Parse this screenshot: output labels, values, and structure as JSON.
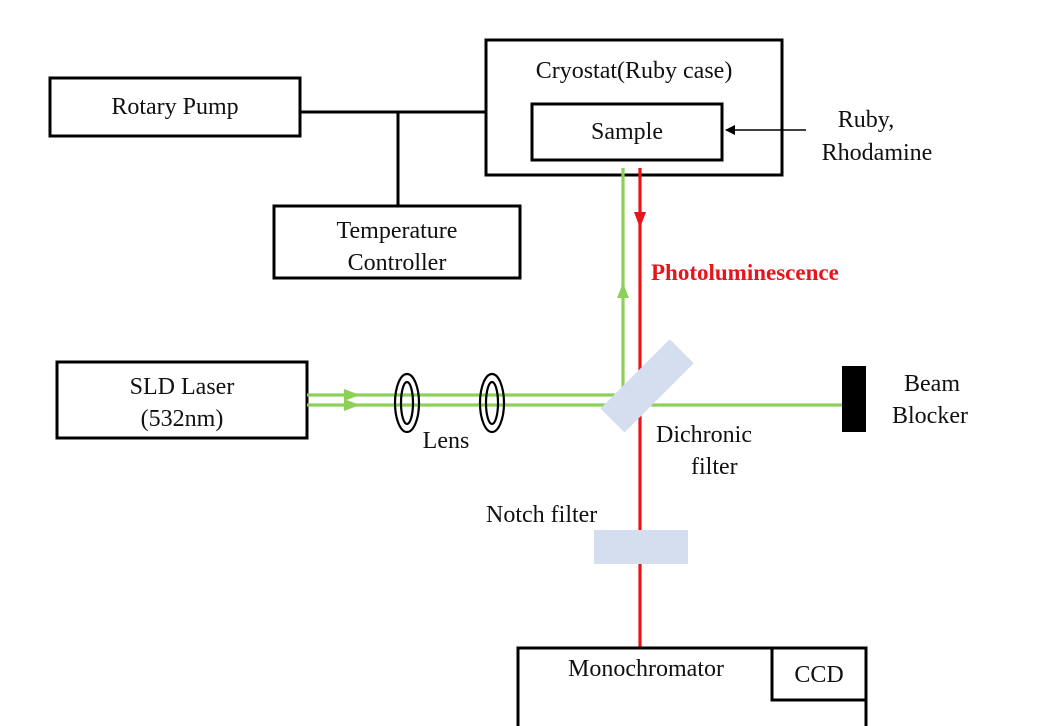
{
  "components": {
    "rotary_pump": "Rotary Pump",
    "cryostat": "Cryostat(Ruby case)",
    "sample": "Sample",
    "ruby_line1": "Ruby,",
    "ruby_line2": "Rhodamine",
    "temp_line1": "Temperature",
    "temp_line2": "Controller",
    "laser_line1": "SLD Laser",
    "laser_line2": "(532nm)",
    "lens": "Lens",
    "dichroic_line1": "Dichronic",
    "dichroic_line2": "filter",
    "beam_line1": "Beam",
    "beam_line2": "Blocker",
    "notch": "Notch filter",
    "monochromator": "Monochromator",
    "ccd": "CCD"
  },
  "signal_label": "Photoluminescence",
  "colors": {
    "laser_beam": "#8cd05a",
    "photoluminescence": "#e8141a",
    "filter": "#d5deee",
    "blocker": "#000000"
  }
}
